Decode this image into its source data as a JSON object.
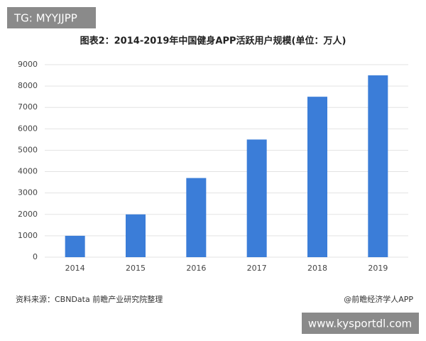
{
  "chart_data": {
    "type": "bar",
    "title": "图表2：2014-2019年中国健身APP活跃用户规模(单位：万人)",
    "categories": [
      "2014",
      "2015",
      "2016",
      "2017",
      "2018",
      "2019"
    ],
    "values": [
      1000,
      2000,
      3700,
      5500,
      7500,
      8500
    ],
    "color": "#3b7dd8",
    "ylim": [
      0,
      9000
    ],
    "yticks": [
      0,
      1000,
      2000,
      3000,
      4000,
      5000,
      6000,
      7000,
      8000,
      9000
    ],
    "grid": true,
    "source": "资料来源：CBNData 前瞻产业研究院整理",
    "credit": "@前瞻经济学人APP"
  },
  "overlays": {
    "top_left": "TG: MYYJJPP",
    "bottom_right": "www.kysportdl.com"
  }
}
